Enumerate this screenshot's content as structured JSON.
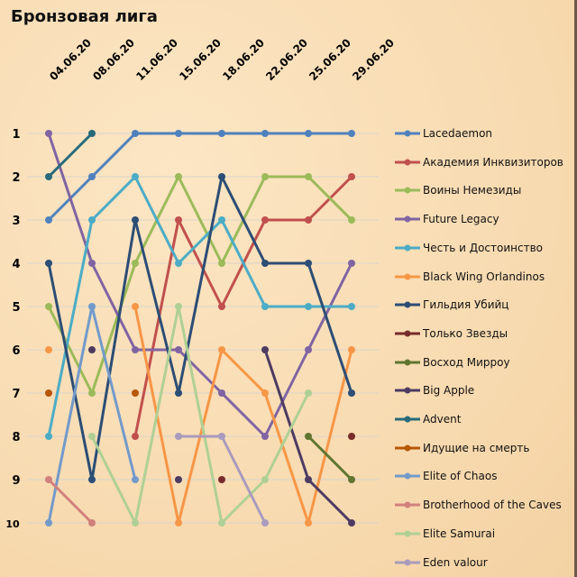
{
  "chart_data": {
    "type": "line",
    "title": "Бронзовая лига",
    "x": [
      "04.06.20",
      "08.06.20",
      "11.06.20",
      "15.06.20",
      "18.06.20",
      "22.06.20",
      "25.06.20",
      "29.06.20"
    ],
    "y_ticks": [
      1,
      2,
      3,
      4,
      5,
      6,
      7,
      8,
      9,
      10
    ],
    "y_inverted": true,
    "ylim": [
      1,
      10
    ],
    "grid": true,
    "legend": "right",
    "series": [
      {
        "name": "Lacedaemon",
        "color": "#4f81bd",
        "values": [
          3,
          2,
          1,
          1,
          1,
          1,
          1,
          1
        ]
      },
      {
        "name": "Академия Инквизиторов",
        "color": "#c0504d",
        "values": [
          null,
          null,
          8,
          3,
          5,
          3,
          3,
          2
        ]
      },
      {
        "name": "Воины Немезиды",
        "color": "#9bbb59",
        "values": [
          5,
          7,
          4,
          2,
          4,
          2,
          2,
          3
        ]
      },
      {
        "name": "Future Legacy",
        "color": "#8064a2",
        "values": [
          1,
          4,
          6,
          6,
          7,
          8,
          6,
          4
        ]
      },
      {
        "name": "Честь и Достоинство",
        "color": "#4bacc6",
        "values": [
          8,
          3,
          2,
          4,
          3,
          5,
          5,
          5
        ]
      },
      {
        "name": "Black Wing Orlandinos",
        "color": "#f79646",
        "values": [
          6,
          null,
          5,
          10,
          6,
          7,
          10,
          6
        ]
      },
      {
        "name": "Гильдия Убийц",
        "color": "#2c4d75",
        "values": [
          4,
          9,
          3,
          7,
          2,
          4,
          4,
          7
        ]
      },
      {
        "name": "Только Звезды",
        "color": "#772c2a",
        "values": [
          null,
          null,
          null,
          null,
          9,
          null,
          null,
          8
        ]
      },
      {
        "name": "Восход Мирроу",
        "color": "#5f7530",
        "values": [
          null,
          null,
          null,
          null,
          null,
          null,
          8,
          9
        ]
      },
      {
        "name": "Big Apple",
        "color": "#4d3b62",
        "values": [
          null,
          6,
          null,
          9,
          null,
          6,
          9,
          10
        ]
      },
      {
        "name": "Advent",
        "color": "#276a7c",
        "values": [
          2,
          1,
          null,
          null,
          null,
          null,
          null,
          null
        ]
      },
      {
        "name": "Идущие на смерть",
        "color": "#b65708",
        "values": [
          7,
          null,
          7,
          null,
          null,
          null,
          null,
          null
        ]
      },
      {
        "name": "Elite of Chaos",
        "color": "#729aca",
        "values": [
          10,
          5,
          9,
          null,
          null,
          null,
          null,
          null
        ]
      },
      {
        "name": "Brotherhood of the Caves",
        "color": "#d1807c",
        "values": [
          9,
          10,
          null,
          null,
          null,
          null,
          null,
          null
        ]
      },
      {
        "name": "Elite Samurai",
        "color": "#afd095",
        "values": [
          null,
          8,
          10,
          5,
          10,
          9,
          7,
          null
        ]
      },
      {
        "name": "Eden valour",
        "color": "#a99bbd",
        "values": [
          null,
          null,
          null,
          8,
          8,
          10,
          null,
          null
        ]
      }
    ]
  }
}
